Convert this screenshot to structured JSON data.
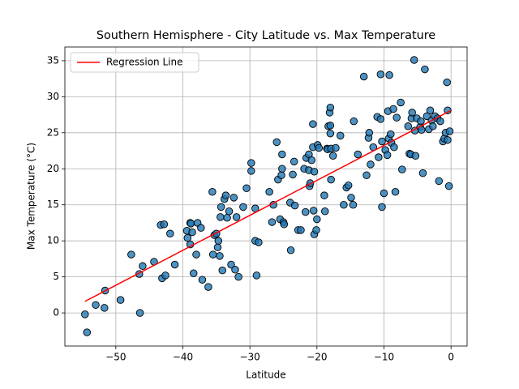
{
  "chart_data": {
    "type": "scatter",
    "title": "Southern Hemisphere - City Latitude vs. Max Temperature",
    "xlabel": "Latitude",
    "ylabel": "Max Temperature (°C)",
    "xlim": [
      -57.6,
      2.4
    ],
    "ylim": [
      -4.6,
      36.9
    ],
    "xticks": [
      {
        "value": -50,
        "label": "−50"
      },
      {
        "value": -40,
        "label": "−40"
      },
      {
        "value": -30,
        "label": "−30"
      },
      {
        "value": -20,
        "label": "−20"
      },
      {
        "value": -10,
        "label": "−10"
      },
      0
    ],
    "yticks": [
      0,
      5,
      10,
      15,
      20,
      25,
      30,
      35
    ],
    "grid": true,
    "legend": "upper left",
    "color": "#1f77b4",
    "x": [
      -54.6,
      -54.3,
      -53,
      -51.7,
      -51.6,
      -49.3,
      -47.7,
      -46.4,
      -46.5,
      -46,
      -44.3,
      -43.3,
      -42.8,
      -43.1,
      -42.6,
      -41.9,
      -41.2,
      -39.4,
      -39.3,
      -38.9,
      -38.8,
      -38.9,
      -38.6,
      -38.4,
      -38,
      -37.8,
      -37.3,
      -37.1,
      -36.2,
      -35.5,
      -35.6,
      -35.3,
      -35,
      -34.8,
      -34.7,
      -34.5,
      -34.4,
      -34.3,
      -34.1,
      -33.8,
      -33.6,
      -33.4,
      -33.1,
      -32.8,
      -32.4,
      -32.2,
      -32,
      -31.7,
      -31,
      -30.5,
      -29.8,
      -29.8,
      -29.2,
      -29.2,
      -29,
      -28.7,
      -27.1,
      -26.7,
      -26.5,
      -26,
      -25.8,
      -25.5,
      -25.3,
      -25.2,
      -25.2,
      -25,
      -24.9,
      -24,
      -23.9,
      -23.6,
      -23.4,
      -23.3,
      -22.8,
      -22.4,
      -21.9,
      -21.7,
      -21.6,
      -21.2,
      -21.2,
      -21.1,
      -21,
      -20.8,
      -20.6,
      -20.6,
      -20.4,
      -20.5,
      -20.4,
      -20.1,
      -20,
      -19.9,
      -19.7,
      -18.9,
      -18.8,
      -18.5,
      -18.4,
      -18.3,
      -18.1,
      -18,
      -18,
      -18,
      -17.9,
      -17.9,
      -17.6,
      -17.2,
      -16.5,
      -16,
      -15.6,
      -15.3,
      -14.9,
      -14.6,
      -14.5,
      -13.9,
      -13,
      -12.6,
      -12.3,
      -12.2,
      -12,
      -11.6,
      -11,
      -10.8,
      -10.5,
      -10.5,
      -10.3,
      -10.3,
      -10,
      -9.8,
      -9.5,
      -9.4,
      -9.3,
      -9.2,
      -9,
      -8.9,
      -8.6,
      -8.5,
      -8.3,
      -8.1,
      -7.5,
      -7.3,
      -6.4,
      -6.2,
      -6,
      -5.9,
      -5.8,
      -5.5,
      -5.4,
      -5.3,
      -5.1,
      -4.6,
      -4.5,
      -4.4,
      -4.2,
      -3.9,
      -3.6,
      -3.3,
      -3.1,
      -2.9,
      -2.7,
      -2.4,
      -2,
      -1.8,
      -1.6,
      -1.2,
      -1,
      -0.8,
      -0.6,
      -0.5,
      -0.5,
      -0.3,
      -0.2
    ],
    "y": [
      -0.2,
      -2.7,
      1.1,
      0.7,
      3.1,
      1.8,
      8.1,
      0,
      5.4,
      6.5,
      7.1,
      12.2,
      12.3,
      4.8,
      5.2,
      11,
      6.7,
      11.4,
      10.4,
      12.5,
      12.4,
      9.5,
      11.2,
      5.5,
      8.1,
      12.5,
      11.8,
      4.6,
      3.6,
      8.1,
      16.8,
      10.8,
      11,
      9.1,
      10,
      7.9,
      13.3,
      14.7,
      5.9,
      15.8,
      16.3,
      13.2,
      14.1,
      6.7,
      16,
      6,
      13.3,
      5,
      14.7,
      17.3,
      20.8,
      19.7,
      14.5,
      10,
      5.2,
      9.8,
      16.8,
      12.6,
      15,
      23.7,
      18.5,
      13,
      19.1,
      20,
      22,
      12.6,
      12.3,
      15.3,
      8.7,
      19.2,
      21,
      14.9,
      11.5,
      11.5,
      20,
      14,
      21.5,
      22,
      19.8,
      17.6,
      18,
      21.2,
      26.2,
      23,
      19.6,
      14.2,
      10.9,
      11.5,
      13,
      23.3,
      22.9,
      16.3,
      14.1,
      22.8,
      22.7,
      25.9,
      27.8,
      28.5,
      26,
      24.9,
      22.8,
      18.5,
      21.8,
      22.9,
      24.6,
      15,
      17.4,
      17.7,
      16,
      15,
      26.6,
      22,
      32.8,
      19.1,
      24.3,
      25,
      20.6,
      23,
      27.2,
      21.6,
      26.9,
      33.1,
      14.7,
      23.8,
      16.6,
      22.6,
      21.9,
      28,
      24.2,
      33,
      24.8,
      23.6,
      28.3,
      23,
      16.8,
      27.1,
      29.2,
      19.9,
      25.9,
      22.1,
      22,
      27,
      27.8,
      35.1,
      25.3,
      21.8,
      27,
      25.8,
      26.6,
      25.4,
      19.4,
      33.8,
      27.3,
      25.5,
      28.1,
      26.7,
      25.9,
      27.3,
      27,
      18.3,
      26.6,
      23.8,
      24.2,
      25,
      32,
      28.1,
      24,
      17.6,
      25.2
    ],
    "regression": {
      "name": "Regression Line",
      "color": "#ff0000",
      "x": [
        -54.6,
        0
      ],
      "y": [
        1.6,
        28.1
      ]
    }
  }
}
